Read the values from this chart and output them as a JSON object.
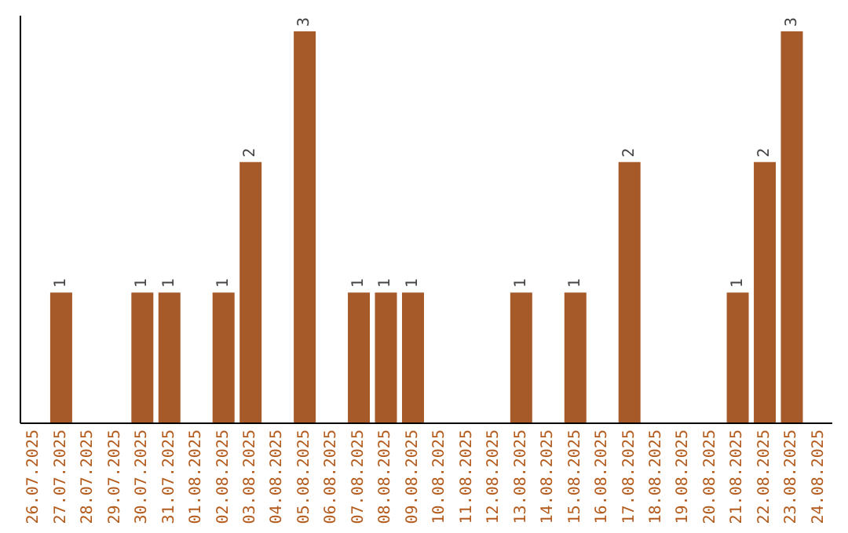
{
  "chart_data": {
    "type": "bar",
    "categories": [
      "26.07.2025",
      "27.07.2025",
      "28.07.2025",
      "29.07.2025",
      "30.07.2025",
      "31.07.2025",
      "01.08.2025",
      "02.08.2025",
      "03.08.2025",
      "04.08.2025",
      "05.08.2025",
      "06.08.2025",
      "07.08.2025",
      "08.08.2025",
      "09.08.2025",
      "10.08.2025",
      "11.08.2025",
      "12.08.2025",
      "13.08.2025",
      "14.08.2025",
      "15.08.2025",
      "16.08.2025",
      "17.08.2025",
      "18.08.2025",
      "19.08.2025",
      "20.08.2025",
      "21.08.2025",
      "22.08.2025",
      "23.08.2025",
      "24.08.2025"
    ],
    "values": [
      0,
      1,
      0,
      0,
      1,
      1,
      0,
      1,
      2,
      0,
      3,
      0,
      1,
      1,
      1,
      0,
      0,
      0,
      1,
      0,
      1,
      0,
      2,
      0,
      0,
      0,
      1,
      2,
      3,
      0
    ],
    "value_labels": [
      null,
      "1",
      null,
      null,
      "1",
      "1",
      null,
      "1",
      "2",
      null,
      "3",
      null,
      "1",
      "1",
      "1",
      null,
      null,
      null,
      "1",
      null,
      "1",
      null,
      "2",
      null,
      null,
      null,
      "1",
      "2",
      "3",
      null
    ],
    "color": "#a65a2a"
  }
}
